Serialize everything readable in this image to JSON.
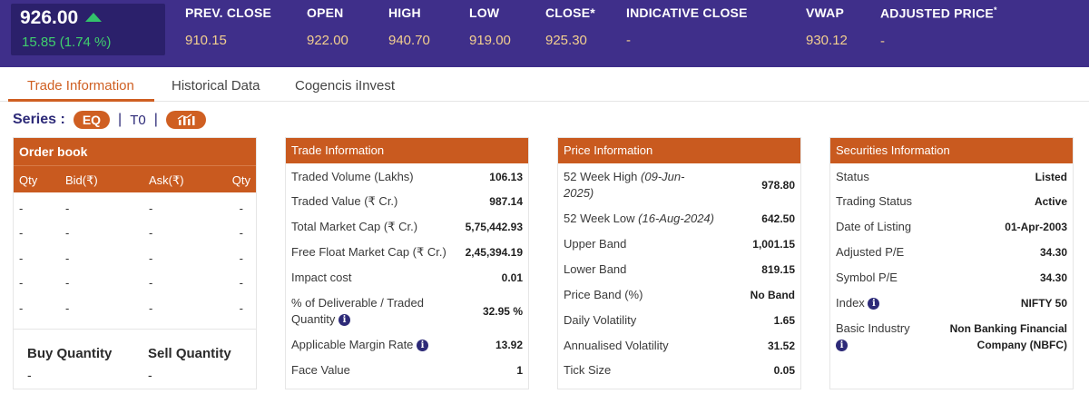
{
  "quote": {
    "price": "926.00",
    "change": "15.85 (1.74 %)",
    "stats": [
      {
        "label": "PREV. CLOSE",
        "value": "910.15"
      },
      {
        "label": "OPEN",
        "value": "922.00"
      },
      {
        "label": "HIGH",
        "value": "940.70"
      },
      {
        "label": "LOW",
        "value": "919.00"
      },
      {
        "label": "CLOSE*",
        "value": "925.30"
      },
      {
        "label": "INDICATIVE CLOSE",
        "value": "-"
      },
      {
        "label": "VWAP",
        "value": "930.12"
      },
      {
        "label": "ADJUSTED PRICE",
        "value": "-",
        "sup": "*"
      }
    ]
  },
  "tabs": [
    "Trade Information",
    "Historical Data",
    "Cogencis iInvest"
  ],
  "series": {
    "label": "Series :",
    "eq": "EQ",
    "sep": "|",
    "t0": "T0",
    "sep2": "|"
  },
  "order_book": {
    "title": "Order book",
    "columns": [
      "Qty",
      "Bid(₹)",
      "Ask(₹)",
      "Qty"
    ],
    "rows": [
      [
        "-",
        "-",
        "-",
        "-"
      ],
      [
        "-",
        "-",
        "-",
        "-"
      ],
      [
        "-",
        "-",
        "-",
        "-"
      ],
      [
        "-",
        "-",
        "-",
        "-"
      ],
      [
        "-",
        "-",
        "-",
        "-"
      ]
    ],
    "buy_label": "Buy Quantity",
    "sell_label": "Sell Quantity",
    "buy_value": "-",
    "sell_value": "-"
  },
  "trade_info": {
    "title": "Trade Information",
    "rows": [
      {
        "k": "Traded Volume (Lakhs)",
        "v": "106.13"
      },
      {
        "k": "Traded Value (₹ Cr.)",
        "v": "987.14"
      },
      {
        "k": "Total Market Cap (₹ Cr.)",
        "v": "5,75,442.93"
      },
      {
        "k": "Free Float Market Cap (₹ Cr.)",
        "v": "2,45,394.19"
      },
      {
        "k": "Impact cost",
        "v": "0.01"
      },
      {
        "k1": "% of Deliverable / Traded",
        "k2": "Quantity",
        "v": "32.95 %"
      },
      {
        "k": "Applicable Margin Rate",
        "v": "13.92"
      },
      {
        "k": "Face Value",
        "v": "1"
      }
    ]
  },
  "price_info": {
    "title": "Price Information",
    "rows": [
      {
        "k": "52 Week High",
        "kd1": "(09-Jun-",
        "kd2": "2025)",
        "v": "978.80"
      },
      {
        "k": "52 Week Low",
        "kd": "(16-Aug-2024)",
        "v": "642.50"
      },
      {
        "k": "Upper Band",
        "v": "1,001.15"
      },
      {
        "k": "Lower Band",
        "v": "819.15"
      },
      {
        "k": "Price Band (%)",
        "v": "No Band"
      },
      {
        "k": "Daily Volatility",
        "v": "1.65"
      },
      {
        "k": "Annualised Volatility",
        "v": "31.52"
      },
      {
        "k": "Tick Size",
        "v": "0.05"
      }
    ]
  },
  "securities_info": {
    "title": "Securities Information",
    "rows": [
      {
        "k": "Status",
        "v": "Listed"
      },
      {
        "k": "Trading Status",
        "v": "Active"
      },
      {
        "k": "Date of Listing",
        "v": "01-Apr-2003"
      },
      {
        "k": "Adjusted P/E",
        "v": "34.30"
      },
      {
        "k": "Symbol P/E",
        "v": "34.30"
      },
      {
        "k": "Index",
        "v": "NIFTY 50"
      },
      {
        "k": "Basic Industry",
        "v1": "Non Banking Financial",
        "v2": "Company (NBFC)"
      }
    ]
  },
  "info_glyph": "i",
  "colors": {
    "header_bg": "#3f2f8a",
    "accent": "#cf5f22",
    "card_head": "#c95a1f",
    "up": "#33c26b",
    "stat_value": "#f3cf8f"
  }
}
